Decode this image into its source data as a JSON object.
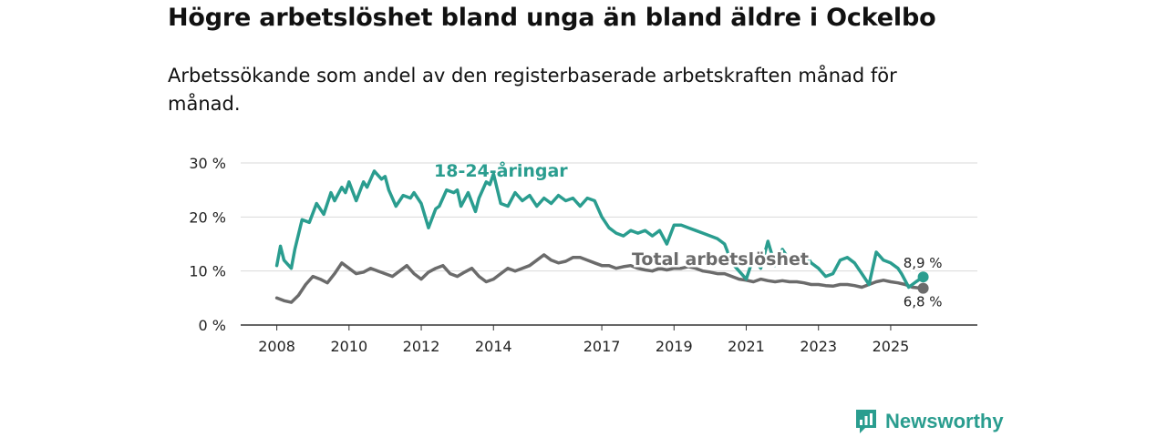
{
  "title": "Högre arbetslöshet bland unga än bland äldre i Ockelbo",
  "subtitle": "Arbetssökande som andel av den registerbaserade arbetskraften månad för månad.",
  "brand": {
    "name": "Newsworthy",
    "icon": "newsworthy-logo-icon",
    "color": "#2a9d8f"
  },
  "chart_data": {
    "type": "line",
    "title": "Högre arbetslöshet bland unga än bland äldre i Ockelbo",
    "xlabel": "",
    "ylabel": "",
    "xlim": [
      2007.0,
      2027.4
    ],
    "ylim": [
      0,
      30
    ],
    "yticks": [
      0,
      10,
      20,
      30
    ],
    "ytick_labels": [
      "0 %",
      "10 %",
      "20 %",
      "30 %"
    ],
    "xticks": [
      2008,
      2010,
      2012,
      2014,
      2017,
      2019,
      2021,
      2023,
      2025
    ],
    "xtick_labels": [
      "2008",
      "2010",
      "2012",
      "2014",
      "2017",
      "2019",
      "2021",
      "2023",
      "2025"
    ],
    "grid": true,
    "series": [
      {
        "name": "18-24-åringar",
        "color": "#2a9d8f",
        "end_label": "8,9 %",
        "end_value": 8.9,
        "x": [
          2008.0,
          2008.1,
          2008.2,
          2008.4,
          2008.5,
          2008.7,
          2008.9,
          2009.1,
          2009.3,
          2009.5,
          2009.6,
          2009.8,
          2009.9,
          2010.0,
          2010.2,
          2010.4,
          2010.5,
          2010.7,
          2010.9,
          2011.0,
          2011.1,
          2011.3,
          2011.5,
          2011.7,
          2011.8,
          2011.9,
          2012.0,
          2012.2,
          2012.4,
          2012.5,
          2012.7,
          2012.9,
          2013.0,
          2013.1,
          2013.3,
          2013.5,
          2013.6,
          2013.8,
          2013.9,
          2014.0,
          2014.2,
          2014.4,
          2014.6,
          2014.8,
          2015.0,
          2015.2,
          2015.4,
          2015.6,
          2015.8,
          2016.0,
          2016.2,
          2016.4,
          2016.6,
          2016.8,
          2017.0,
          2017.2,
          2017.4,
          2017.6,
          2017.8,
          2018.0,
          2018.2,
          2018.4,
          2018.6,
          2018.8,
          2019.0,
          2019.2,
          2019.4,
          2019.6,
          2019.8,
          2020.0,
          2020.2,
          2020.4,
          2020.6,
          2020.8,
          2021.0,
          2021.2,
          2021.4,
          2021.6,
          2021.8,
          2022.0,
          2022.2,
          2022.4,
          2022.6,
          2022.8,
          2023.0,
          2023.2,
          2023.4,
          2023.6,
          2023.8,
          2024.0,
          2024.2,
          2024.4,
          2024.6,
          2024.8,
          2025.0,
          2025.2,
          2025.3,
          2025.5,
          2025.7,
          2025.9
        ],
        "values": [
          11.0,
          14.6,
          12.0,
          10.5,
          14.0,
          19.5,
          19.0,
          22.5,
          20.5,
          24.5,
          23.0,
          25.5,
          24.5,
          26.5,
          23.0,
          26.5,
          25.5,
          28.5,
          27.0,
          27.5,
          25.0,
          22.0,
          24.0,
          23.5,
          24.5,
          23.5,
          22.5,
          18.0,
          21.5,
          22.0,
          25.0,
          24.5,
          25.0,
          22.0,
          24.5,
          21.0,
          23.5,
          26.5,
          26.0,
          28.0,
          22.5,
          22.0,
          24.5,
          23.0,
          24.0,
          22.0,
          23.5,
          22.5,
          24.0,
          23.0,
          23.5,
          22.0,
          23.5,
          23.0,
          20.0,
          18.0,
          17.0,
          16.5,
          17.5,
          17.0,
          17.5,
          16.5,
          17.5,
          15.0,
          18.5,
          18.5,
          18.0,
          17.5,
          17.0,
          16.5,
          16.0,
          15.0,
          11.5,
          10.0,
          8.5,
          12.5,
          10.5,
          15.5,
          11.0,
          14.0,
          12.0,
          11.0,
          13.5,
          11.5,
          10.5,
          9.0,
          9.5,
          12.0,
          12.5,
          11.5,
          9.5,
          7.5,
          13.5,
          12.0,
          11.5,
          10.5,
          9.5,
          7.0,
          8.0,
          8.9
        ]
      },
      {
        "name": "Total arbetslöshet",
        "color": "#6b6b6b",
        "end_label": "6,8 %",
        "end_value": 6.8,
        "x": [
          2008.0,
          2008.2,
          2008.4,
          2008.6,
          2008.8,
          2009.0,
          2009.2,
          2009.4,
          2009.6,
          2009.8,
          2010.0,
          2010.2,
          2010.4,
          2010.6,
          2010.8,
          2011.0,
          2011.2,
          2011.4,
          2011.6,
          2011.8,
          2012.0,
          2012.2,
          2012.4,
          2012.6,
          2012.8,
          2013.0,
          2013.2,
          2013.4,
          2013.6,
          2013.8,
          2014.0,
          2014.2,
          2014.4,
          2014.6,
          2014.8,
          2015.0,
          2015.2,
          2015.4,
          2015.6,
          2015.8,
          2016.0,
          2016.2,
          2016.4,
          2016.6,
          2016.8,
          2017.0,
          2017.2,
          2017.4,
          2017.6,
          2017.8,
          2018.0,
          2018.2,
          2018.4,
          2018.6,
          2018.8,
          2019.0,
          2019.2,
          2019.4,
          2019.6,
          2019.8,
          2020.0,
          2020.2,
          2020.4,
          2020.6,
          2020.8,
          2021.0,
          2021.2,
          2021.4,
          2021.6,
          2021.8,
          2022.0,
          2022.2,
          2022.4,
          2022.6,
          2022.8,
          2023.0,
          2023.2,
          2023.4,
          2023.6,
          2023.8,
          2024.0,
          2024.2,
          2024.4,
          2024.6,
          2024.8,
          2025.0,
          2025.2,
          2025.4,
          2025.6,
          2025.9
        ],
        "values": [
          5.0,
          4.5,
          4.2,
          5.5,
          7.5,
          9.0,
          8.5,
          7.8,
          9.5,
          11.5,
          10.5,
          9.5,
          9.8,
          10.5,
          10.0,
          9.5,
          9.0,
          10.0,
          11.0,
          9.5,
          8.5,
          9.8,
          10.5,
          11.0,
          9.5,
          9.0,
          9.8,
          10.5,
          9.0,
          8.0,
          8.5,
          9.5,
          10.5,
          10.0,
          10.5,
          11.0,
          12.0,
          13.0,
          12.0,
          11.5,
          11.8,
          12.5,
          12.5,
          12.0,
          11.5,
          11.0,
          11.0,
          10.5,
          10.8,
          11.0,
          10.5,
          10.2,
          10.0,
          10.5,
          10.2,
          10.5,
          10.5,
          10.8,
          10.5,
          10.0,
          9.8,
          9.5,
          9.5,
          9.0,
          8.5,
          8.3,
          8.0,
          8.5,
          8.2,
          8.0,
          8.2,
          8.0,
          8.0,
          7.8,
          7.5,
          7.5,
          7.3,
          7.2,
          7.5,
          7.5,
          7.3,
          7.0,
          7.5,
          8.0,
          8.3,
          8.0,
          7.8,
          7.5,
          7.0,
          6.8
        ]
      }
    ]
  }
}
